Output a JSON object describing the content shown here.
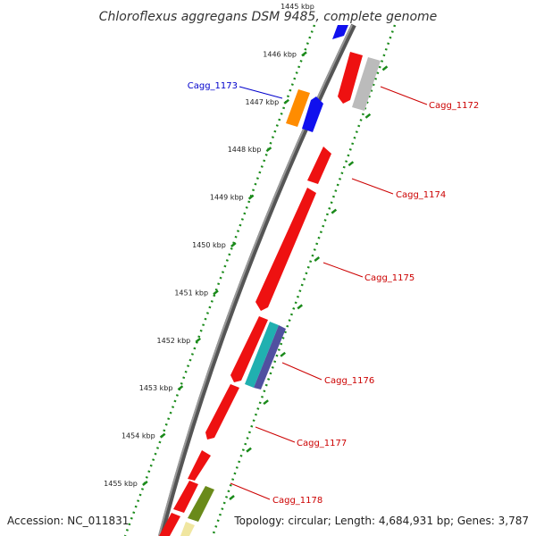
{
  "title": "Chloroflexus aggregans DSM 9485, complete genome",
  "accession": "Accession: NC_011831",
  "summary": "Topology: circular; Length: 4,684,931 bp; Genes: 3,787",
  "colors": {
    "backbone": "#777777",
    "tick_dots": "#1a8a1a",
    "gene_red": "#ee1111",
    "gene_blue": "#1010ee",
    "gene_orange": "#ff8c00",
    "gene_gray": "#bbbbbb",
    "gene_olive": "#6a8a1a",
    "gene_teal": "#20b0b0",
    "gene_purple": "#5050a0",
    "gene_yellow": "#f0e6a0",
    "label_forward": "#0000cc",
    "label_reverse": "#cc0000"
  },
  "ticks": [
    {
      "label": "1445 kbp"
    },
    {
      "label": "1446 kbp"
    },
    {
      "label": "1447 kbp"
    },
    {
      "label": "1448 kbp"
    },
    {
      "label": "1449 kbp"
    },
    {
      "label": "1450 kbp"
    },
    {
      "label": "1451 kbp"
    },
    {
      "label": "1452 kbp"
    },
    {
      "label": "1453 kbp"
    },
    {
      "label": "1454 kbp"
    },
    {
      "label": "1455 kbp"
    }
  ],
  "gene_labels": [
    {
      "text": "Cagg_1173",
      "strand": "forward"
    },
    {
      "text": "Cagg_1172",
      "strand": "reverse"
    },
    {
      "text": "Cagg_1174",
      "strand": "reverse"
    },
    {
      "text": "Cagg_1175",
      "strand": "reverse"
    },
    {
      "text": "Cagg_1176",
      "strand": "reverse"
    },
    {
      "text": "Cagg_1177",
      "strand": "reverse"
    },
    {
      "text": "Cagg_1178",
      "strand": "reverse"
    }
  ]
}
